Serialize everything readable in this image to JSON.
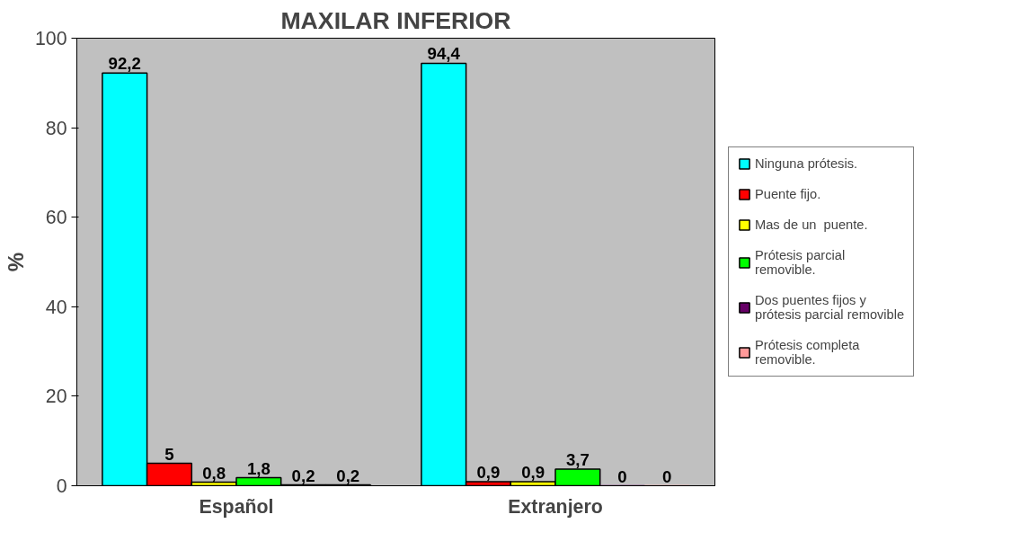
{
  "chart_data": {
    "type": "bar",
    "title": "MAXILAR INFERIOR",
    "ylabel": "%",
    "categories": [
      "Español",
      "Extranjero"
    ],
    "series": [
      {
        "name": "Ninguna prótesis.",
        "color": "#00ffff",
        "values": [
          92.2,
          94.4
        ],
        "value_labels": [
          "92,2",
          "94,4"
        ]
      },
      {
        "name": "Puente fijo.",
        "color": "#ff0000",
        "values": [
          5,
          0.9
        ],
        "value_labels": [
          "5",
          "0,9"
        ]
      },
      {
        "name": "Mas de un  puente.",
        "color": "#ffff00",
        "values": [
          0.8,
          0.9
        ],
        "value_labels": [
          "0,8",
          "0,9"
        ]
      },
      {
        "name": "Prótesis parcial removible.",
        "color": "#00ff00",
        "values": [
          1.8,
          3.7
        ],
        "value_labels": [
          "1,8",
          "3,7"
        ]
      },
      {
        "name": "Dos puentes fijos y prótesis parcial removible",
        "color": "#660066",
        "values": [
          0.2,
          0
        ],
        "value_labels": [
          "0,2",
          "0"
        ]
      },
      {
        "name": "Prótesis completa removible.",
        "color": "#ff9999",
        "values": [
          0.2,
          0
        ],
        "value_labels": [
          "0,2",
          "0"
        ]
      }
    ],
    "ylim": [
      0,
      100
    ],
    "yticks": [
      0,
      20,
      40,
      60,
      80,
      100
    ],
    "grid": false,
    "legend": "right"
  }
}
